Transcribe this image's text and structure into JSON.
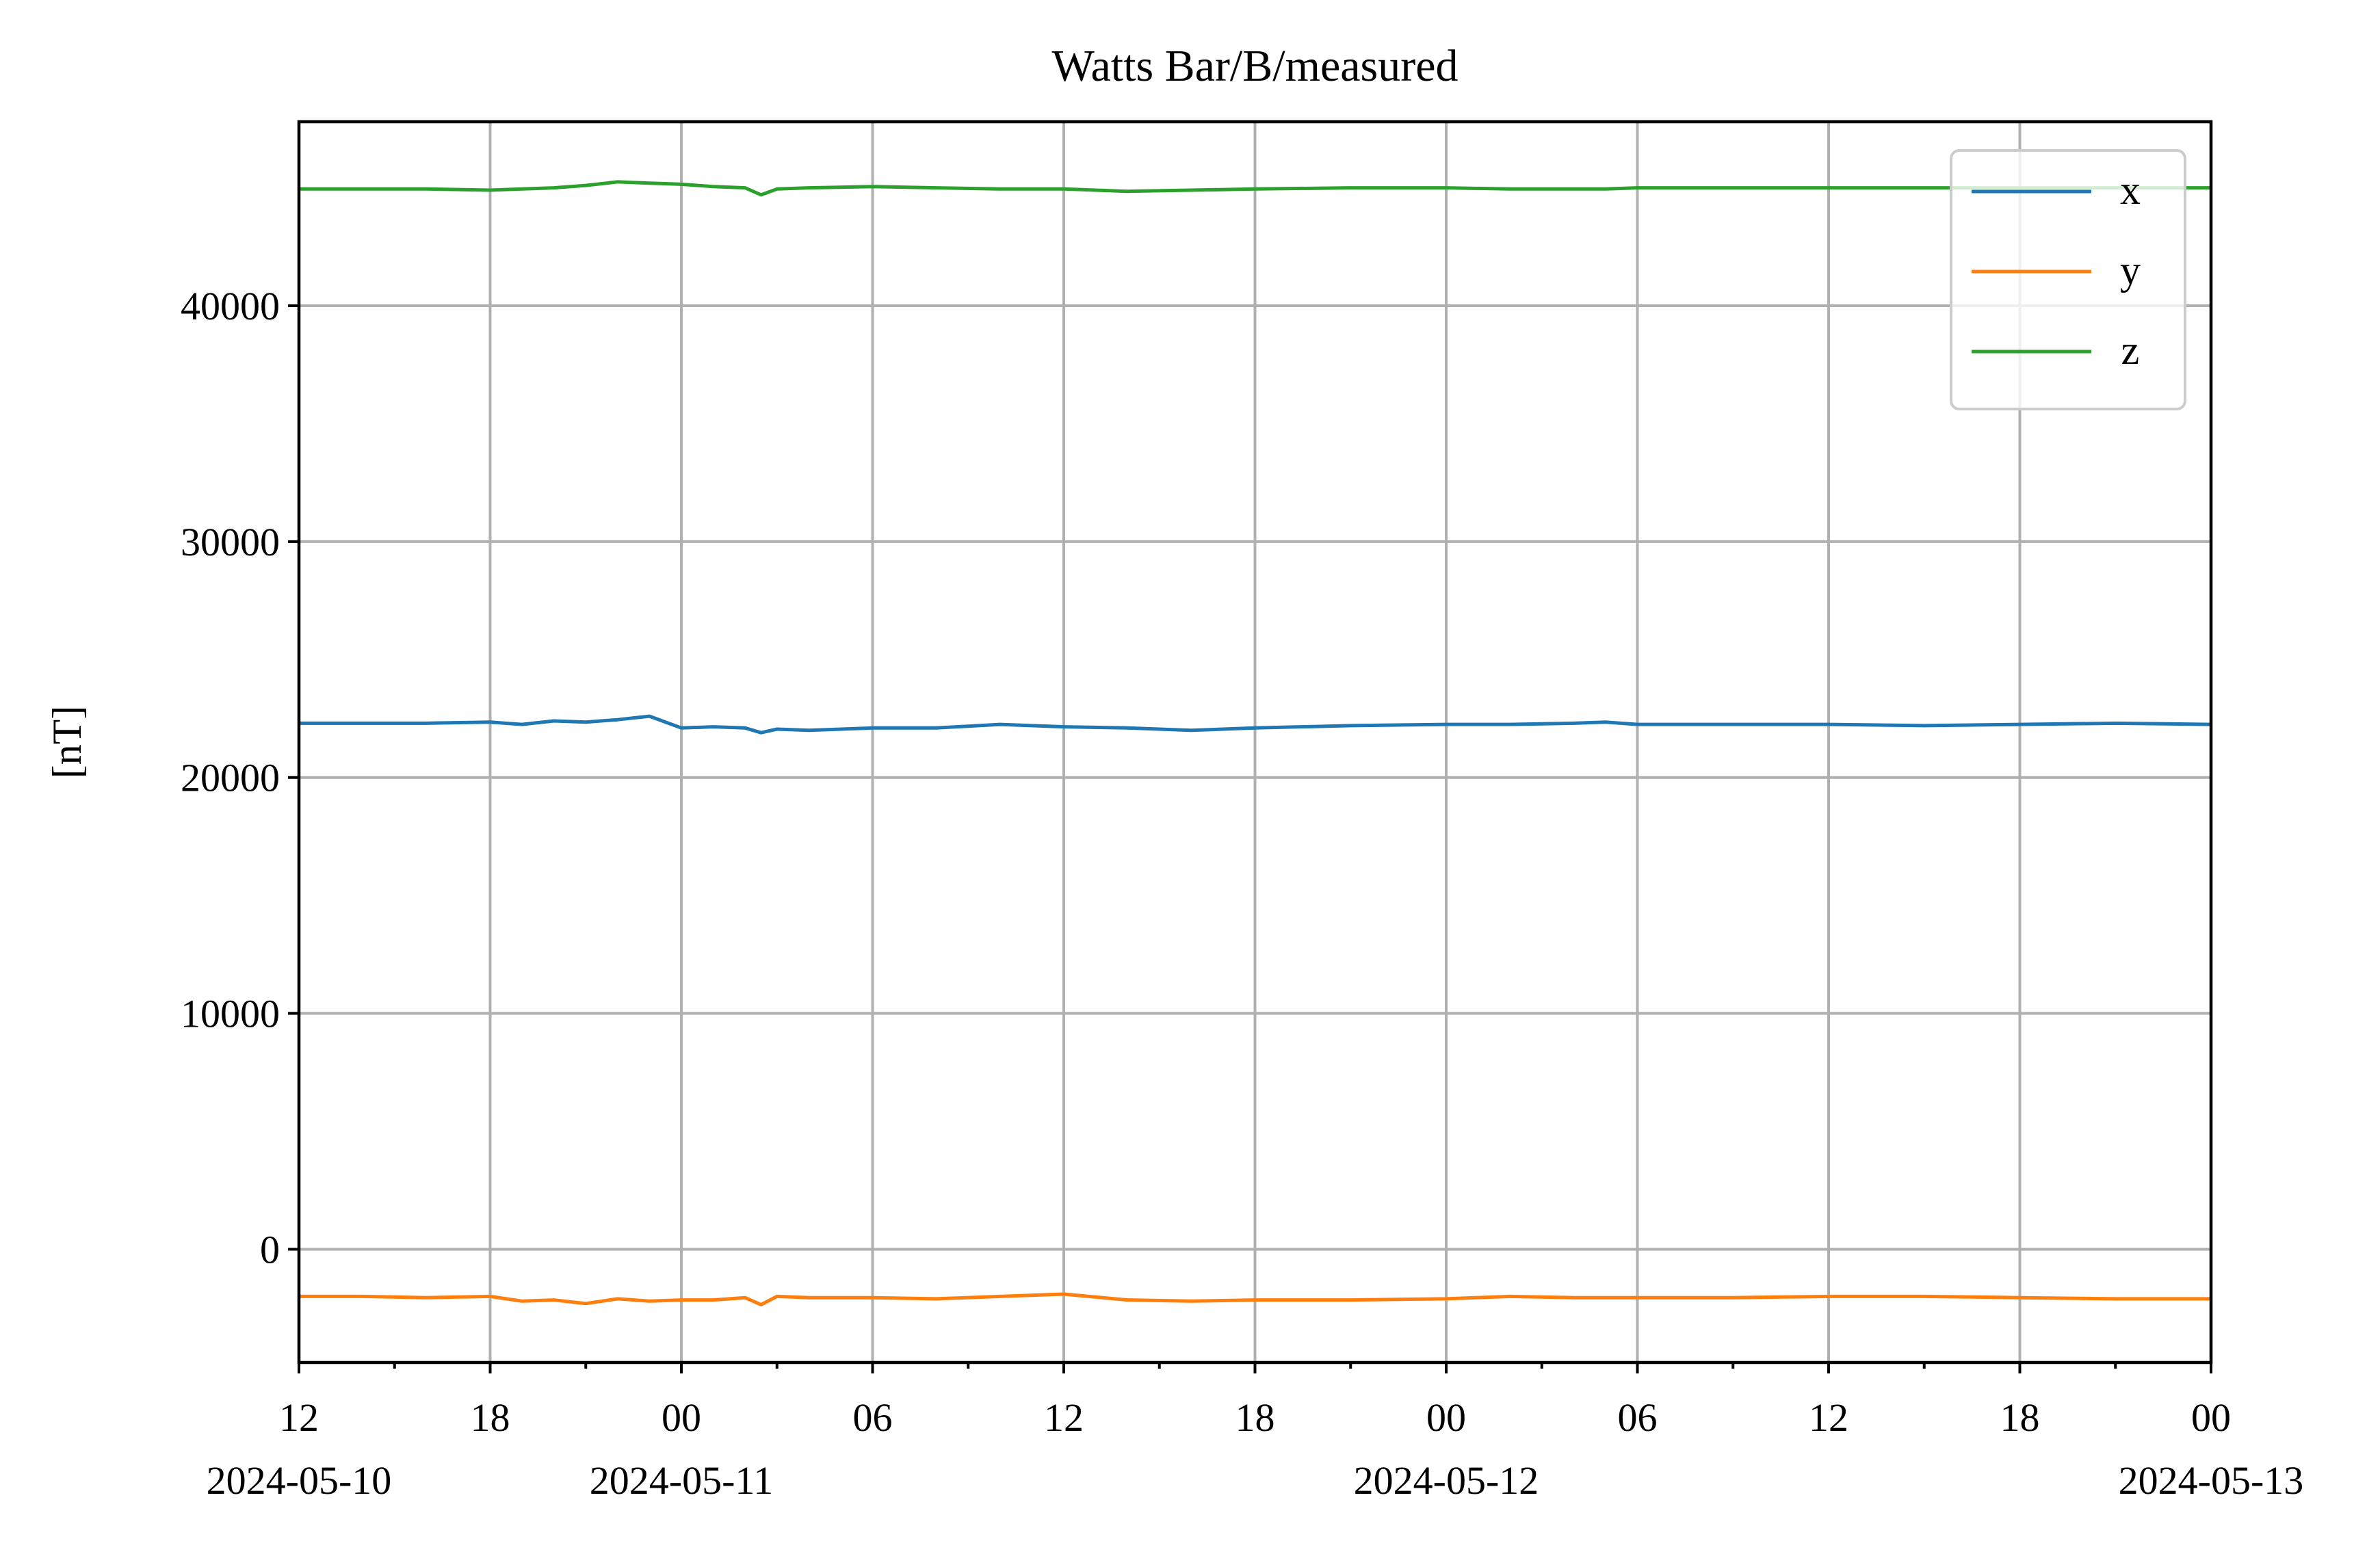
{
  "chart_data": {
    "type": "line",
    "title": "Watts Bar/B/measured",
    "ylabel": "[nT]",
    "xlabel": "",
    "grid": true,
    "legend_position": "top-right",
    "ylim": [
      -4800,
      47800
    ],
    "xlim": [
      "2024-05-10T12:00",
      "2024-05-13T00:00"
    ],
    "yticks": [
      0,
      10000,
      20000,
      30000,
      40000
    ],
    "ytick_labels": [
      "0",
      "10000",
      "20000",
      "30000",
      "40000"
    ],
    "xticks": [
      {
        "time": "2024-05-10T12:00",
        "label": "12",
        "date_label": "2024-05-10"
      },
      {
        "time": "2024-05-10T18:00",
        "label": "18",
        "date_label": ""
      },
      {
        "time": "2024-05-11T00:00",
        "label": "00",
        "date_label": "2024-05-11"
      },
      {
        "time": "2024-05-11T06:00",
        "label": "06",
        "date_label": ""
      },
      {
        "time": "2024-05-11T12:00",
        "label": "12",
        "date_label": ""
      },
      {
        "time": "2024-05-11T18:00",
        "label": "18",
        "date_label": ""
      },
      {
        "time": "2024-05-12T00:00",
        "label": "00",
        "date_label": "2024-05-12"
      },
      {
        "time": "2024-05-12T06:00",
        "label": "06",
        "date_label": ""
      },
      {
        "time": "2024-05-12T12:00",
        "label": "12",
        "date_label": ""
      },
      {
        "time": "2024-05-12T18:00",
        "label": "18",
        "date_label": ""
      },
      {
        "time": "2024-05-13T00:00",
        "label": "00",
        "date_label": "2024-05-13"
      }
    ],
    "x": [
      "2024-05-10T12:00",
      "2024-05-10T14:00",
      "2024-05-10T16:00",
      "2024-05-10T18:00",
      "2024-05-10T19:00",
      "2024-05-10T20:00",
      "2024-05-10T21:00",
      "2024-05-10T22:00",
      "2024-05-10T23:00",
      "2024-05-11T00:00",
      "2024-05-11T01:00",
      "2024-05-11T02:00",
      "2024-05-11T02:30",
      "2024-05-11T03:00",
      "2024-05-11T04:00",
      "2024-05-11T06:00",
      "2024-05-11T08:00",
      "2024-05-11T10:00",
      "2024-05-11T12:00",
      "2024-05-11T14:00",
      "2024-05-11T16:00",
      "2024-05-11T18:00",
      "2024-05-11T21:00",
      "2024-05-12T00:00",
      "2024-05-12T02:00",
      "2024-05-12T04:00",
      "2024-05-12T05:00",
      "2024-05-12T06:00",
      "2024-05-12T09:00",
      "2024-05-12T12:00",
      "2024-05-12T15:00",
      "2024-05-12T18:00",
      "2024-05-12T21:00",
      "2024-05-13T00:00"
    ],
    "series": [
      {
        "name": "x",
        "color": "#1f77b4",
        "values": [
          22300,
          22300,
          22300,
          22350,
          22250,
          22400,
          22350,
          22450,
          22600,
          22100,
          22150,
          22100,
          21900,
          22050,
          22000,
          22100,
          22100,
          22250,
          22150,
          22100,
          22000,
          22100,
          22200,
          22250,
          22250,
          22300,
          22350,
          22250,
          22250,
          22250,
          22200,
          22250,
          22300,
          22250
        ]
      },
      {
        "name": "y",
        "color": "#ff7f0e",
        "values": [
          -2000,
          -2000,
          -2050,
          -2000,
          -2200,
          -2150,
          -2300,
          -2100,
          -2200,
          -2150,
          -2150,
          -2050,
          -2350,
          -2000,
          -2050,
          -2050,
          -2100,
          -2000,
          -1900,
          -2150,
          -2200,
          -2150,
          -2150,
          -2100,
          -2000,
          -2050,
          -2050,
          -2050,
          -2050,
          -2000,
          -2000,
          -2050,
          -2100,
          -2100
        ]
      },
      {
        "name": "z",
        "color": "#2ca02c",
        "values": [
          44950,
          44950,
          44950,
          44900,
          44950,
          45000,
          45100,
          45250,
          45200,
          45150,
          45050,
          45000,
          44700,
          44950,
          45000,
          45050,
          45000,
          44950,
          44950,
          44850,
          44900,
          44950,
          45000,
          45000,
          44950,
          44950,
          44950,
          45000,
          45000,
          45000,
          45000,
          45000,
          45000,
          45000
        ]
      }
    ]
  }
}
